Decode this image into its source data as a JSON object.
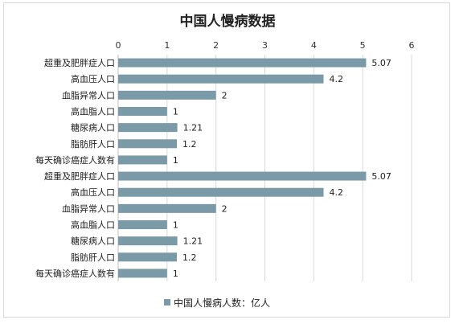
{
  "chart_data": {
    "type": "bar",
    "orientation": "horizontal",
    "title": "中国人慢病数据",
    "categories": [
      "超重及肥胖症人口",
      "高血压人口",
      "血脂异常人口",
      "高血脂人口",
      "糖尿病人口",
      "脂肪肝人口",
      "每天确诊癌症人数有",
      "超重及肥胖症人口",
      "高血压人口",
      "血脂异常人口",
      "高血脂人口",
      "糖尿病人口",
      "脂肪肝人口",
      "每天确诊癌症人数有"
    ],
    "series": [
      {
        "name": "中国人慢病人数：亿人",
        "values": [
          5.07,
          4.2,
          2,
          1,
          1.21,
          1.2,
          1,
          5.07,
          4.2,
          2,
          1,
          1.21,
          1.2,
          1
        ],
        "labels": [
          "5.07",
          "4.2",
          "2",
          "1",
          "1.21",
          "1.2",
          "1",
          "5.07",
          "4.2",
          "2",
          "1",
          "1.21",
          "1.2",
          "1"
        ]
      }
    ],
    "xlim": [
      0,
      6
    ],
    "xticks": [
      "0",
      "1",
      "2",
      "3",
      "4",
      "5",
      "6"
    ],
    "x_axis_position": "top",
    "grid": true,
    "legend_position": "bottom",
    "bar_color": "#7a9aa8"
  }
}
